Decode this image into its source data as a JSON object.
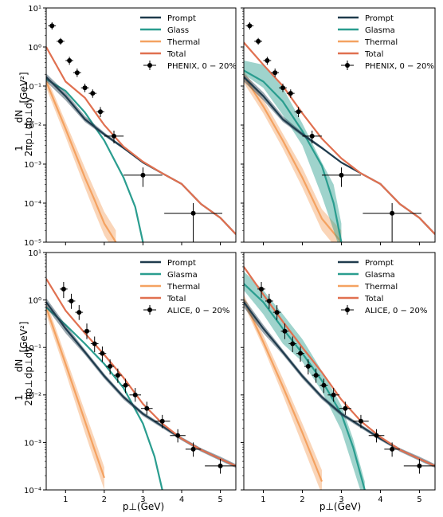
{
  "axes": {
    "ylabel_frac_num": "1",
    "ylabel_frac_den": "2πp⊥",
    "ylabel_deriv_num": "dN",
    "ylabel_deriv_den": "dp⊥dy",
    "ylabel_unit": "[GeV²]",
    "xlabel": "p⊥(GeV)"
  },
  "colors": {
    "prompt": "#1f3b4d",
    "glasma": "#2a9d8f",
    "thermal": "#f4a261",
    "total": "#e07050",
    "data": "#000000"
  },
  "chart_data": [
    {
      "type": "line",
      "panel": "top-left",
      "yscale": "log",
      "xlim": [
        0.5,
        5.4
      ],
      "ylim": [
        1e-05,
        10
      ],
      "xticks": [
        1,
        2,
        3,
        4,
        5
      ],
      "yticks": [
        "10⁻⁵",
        "10⁻⁴",
        "10⁻³",
        "10⁻²",
        "10⁻¹",
        "10⁰",
        "10¹"
      ],
      "show_x_ticklabels": false,
      "show_y_ticklabels": true,
      "legend_loc": "top-right",
      "series": [
        {
          "name": "Prompt",
          "key": "prompt",
          "style": "band",
          "x": [
            0.5,
            1.0,
            1.5,
            2.0,
            2.5,
            3.0,
            3.5,
            4.0,
            4.5,
            5.0,
            5.4
          ],
          "y": [
            0.17,
            0.055,
            0.014,
            0.0058,
            0.0026,
            0.0011,
            0.00058,
            0.00031,
            9.5e-05,
            4.2e-05,
            1.6e-05
          ],
          "lo": [
            0.13,
            0.043,
            0.012,
            0.0052,
            0.0024,
            0.0011,
            0.00058,
            0.00031,
            9.5e-05,
            4.2e-05,
            1.6e-05
          ],
          "hi": [
            0.21,
            0.069,
            0.017,
            0.0065,
            0.0028,
            0.0011,
            0.00058,
            0.00031,
            9.5e-05,
            4.2e-05,
            1.6e-05
          ]
        },
        {
          "name": "Glass",
          "key": "glasma",
          "style": "line",
          "x": [
            0.5,
            1.0,
            1.5,
            2.0,
            2.5,
            2.8,
            3.0
          ],
          "y": [
            0.15,
            0.075,
            0.021,
            0.004,
            0.00045,
            8e-05,
            1e-05
          ]
        },
        {
          "name": "Thermal",
          "key": "thermal",
          "style": "band",
          "x": [
            0.5,
            1.0,
            1.5,
            1.75,
            2.0,
            2.3
          ],
          "y": [
            0.13,
            0.008,
            0.00045,
            0.00012,
            3e-05,
            1e-05
          ],
          "lo": [
            0.09,
            0.005,
            0.00025,
            6e-05,
            1.5e-05,
            5e-06
          ],
          "hi": [
            0.18,
            0.012,
            0.0008,
            0.00022,
            6e-05,
            2e-05
          ]
        },
        {
          "name": "Total",
          "key": "total",
          "style": "line",
          "x": [
            0.5,
            1.0,
            1.5,
            2.0,
            2.5,
            3.0,
            3.5,
            4.0,
            4.5,
            5.0,
            5.4
          ],
          "y": [
            1.0,
            0.13,
            0.05,
            0.01,
            0.0028,
            0.00115,
            0.00058,
            0.00031,
            9.5e-05,
            4.2e-05,
            1.6e-05
          ]
        },
        {
          "name": "PHENIX, 0 − 20%",
          "key": "data",
          "style": "errorbar",
          "x": [
            0.65,
            0.87,
            1.1,
            1.3,
            1.5,
            1.7,
            1.9,
            2.25,
            3.0,
            4.3
          ],
          "y": [
            3.5,
            1.4,
            0.45,
            0.22,
            0.09,
            0.065,
            0.022,
            0.0052,
            0.00052,
            5.5e-05
          ],
          "xerr": [
            0.1,
            0.1,
            0.1,
            0.1,
            0.1,
            0.1,
            0.1,
            0.25,
            0.5,
            0.75
          ],
          "ylo": [
            2.8,
            1.15,
            0.35,
            0.17,
            0.07,
            0.05,
            0.016,
            0.0034,
            0.00026,
            1e-05
          ],
          "yhi": [
            4.3,
            1.7,
            0.56,
            0.28,
            0.115,
            0.082,
            0.029,
            0.0072,
            0.00082,
            0.0001
          ]
        }
      ]
    },
    {
      "type": "line",
      "panel": "top-right",
      "yscale": "log",
      "xlim": [
        0.5,
        5.4
      ],
      "ylim": [
        1e-05,
        10
      ],
      "xticks": [
        1,
        2,
        3,
        4,
        5
      ],
      "yticks": [
        "10⁻⁵",
        "10⁻⁴",
        "10⁻³",
        "10⁻²",
        "10⁻¹",
        "10⁰",
        "10¹"
      ],
      "show_x_ticklabels": false,
      "show_y_ticklabels": false,
      "legend_loc": "top-right",
      "series": [
        {
          "name": "Prompt",
          "key": "prompt",
          "style": "band",
          "x": [
            0.5,
            1.0,
            1.5,
            2.0,
            2.5,
            3.0,
            3.5,
            4.0,
            4.5,
            5.0,
            5.4
          ],
          "y": [
            0.17,
            0.055,
            0.014,
            0.0058,
            0.0026,
            0.0011,
            0.00058,
            0.00031,
            9.5e-05,
            4.2e-05,
            1.6e-05
          ],
          "lo": [
            0.13,
            0.043,
            0.012,
            0.0052,
            0.0024,
            0.0011,
            0.00058,
            0.00031,
            9.5e-05,
            4.2e-05,
            1.6e-05
          ],
          "hi": [
            0.21,
            0.069,
            0.017,
            0.0065,
            0.0028,
            0.0011,
            0.00058,
            0.00031,
            9.5e-05,
            4.2e-05,
            1.6e-05
          ]
        },
        {
          "name": "Glasma",
          "key": "glasma",
          "style": "band",
          "x": [
            0.5,
            1.0,
            1.5,
            2.0,
            2.5,
            2.8,
            3.0
          ],
          "y": [
            0.25,
            0.13,
            0.04,
            0.007,
            0.0009,
            0.0001,
            1e-05
          ],
          "lo": [
            0.2,
            0.09,
            0.018,
            0.003,
            0.00015,
            2e-05,
            5e-06
          ],
          "hi": [
            0.45,
            0.35,
            0.09,
            0.011,
            0.0011,
            0.0003,
            3e-05
          ]
        },
        {
          "name": "Thermal",
          "key": "thermal",
          "style": "band",
          "x": [
            0.5,
            1.0,
            1.5,
            2.0,
            2.5,
            3.0
          ],
          "y": [
            0.18,
            0.03,
            0.004,
            0.00045,
            4e-05,
            1e-05
          ],
          "lo": [
            0.12,
            0.02,
            0.0025,
            0.00025,
            2e-05,
            5e-06
          ],
          "hi": [
            0.25,
            0.045,
            0.006,
            0.0008,
            7e-05,
            2e-05
          ]
        },
        {
          "name": "Total",
          "key": "total",
          "style": "line",
          "x": [
            0.5,
            1.0,
            1.5,
            2.0,
            2.5,
            3.0,
            3.5,
            4.0,
            4.5,
            5.0,
            5.4
          ],
          "y": [
            1.3,
            0.35,
            0.1,
            0.02,
            0.0045,
            0.0014,
            0.00058,
            0.00031,
            9.5e-05,
            4.2e-05,
            1.6e-05
          ]
        },
        {
          "name": "PHENIX, 0 − 20%",
          "key": "data",
          "style": "errorbar",
          "x": [
            0.65,
            0.87,
            1.1,
            1.3,
            1.5,
            1.7,
            1.9,
            2.25,
            3.0,
            4.3
          ],
          "y": [
            3.5,
            1.4,
            0.45,
            0.22,
            0.09,
            0.065,
            0.022,
            0.0052,
            0.00052,
            5.5e-05
          ],
          "xerr": [
            0.1,
            0.1,
            0.1,
            0.1,
            0.1,
            0.1,
            0.1,
            0.25,
            0.5,
            0.75
          ],
          "ylo": [
            2.8,
            1.15,
            0.35,
            0.17,
            0.07,
            0.05,
            0.016,
            0.0034,
            0.00026,
            1e-05
          ],
          "yhi": [
            4.3,
            1.7,
            0.56,
            0.28,
            0.115,
            0.082,
            0.029,
            0.0072,
            0.00082,
            0.0001
          ]
        }
      ]
    },
    {
      "type": "line",
      "panel": "bottom-left",
      "yscale": "log",
      "xlim": [
        0.5,
        5.4
      ],
      "ylim": [
        0.0001,
        10
      ],
      "xticks": [
        1,
        2,
        3,
        4,
        5
      ],
      "yticks": [
        "10⁻⁴",
        "10⁻³",
        "10⁻²",
        "10⁻¹",
        "10⁰",
        "10¹"
      ],
      "show_x_ticklabels": true,
      "show_y_ticklabels": true,
      "legend_loc": "top-right",
      "series": [
        {
          "name": "Prompt",
          "key": "prompt",
          "style": "band",
          "x": [
            0.5,
            1.0,
            1.5,
            2.0,
            2.5,
            3.0,
            3.5,
            4.0,
            4.5,
            5.0,
            5.4
          ],
          "y": [
            0.9,
            0.25,
            0.08,
            0.025,
            0.009,
            0.004,
            0.0022,
            0.0012,
            0.0007,
            0.00045,
            0.00032
          ],
          "lo": [
            0.7,
            0.2,
            0.07,
            0.022,
            0.008,
            0.0036,
            0.002,
            0.0011,
            0.00064,
            0.00041,
            0.00029
          ],
          "hi": [
            1.1,
            0.3,
            0.09,
            0.028,
            0.01,
            0.0044,
            0.0024,
            0.0013,
            0.00076,
            0.0005,
            0.00035
          ]
        },
        {
          "name": "Glasma",
          "key": "glasma",
          "style": "line",
          "x": [
            0.5,
            1.0,
            1.5,
            2.0,
            2.5,
            3.0,
            3.3,
            3.5
          ],
          "y": [
            0.7,
            0.3,
            0.12,
            0.045,
            0.014,
            0.0025,
            0.0005,
            0.0001
          ]
        },
        {
          "name": "Thermal",
          "key": "thermal",
          "style": "band",
          "x": [
            0.5,
            1.0,
            1.5,
            1.75,
            2.0
          ],
          "y": [
            0.7,
            0.045,
            0.0028,
            0.0007,
            0.00018
          ],
          "lo": [
            0.5,
            0.03,
            0.0016,
            0.0004,
            0.0001
          ],
          "hi": [
            0.95,
            0.065,
            0.0045,
            0.0012,
            0.0003
          ]
        },
        {
          "name": "Total",
          "key": "total",
          "style": "line",
          "x": [
            0.5,
            1.0,
            1.5,
            2.0,
            2.5,
            3.0,
            3.5,
            4.0,
            4.5,
            5.0,
            5.4
          ],
          "y": [
            2.8,
            0.6,
            0.2,
            0.07,
            0.023,
            0.0065,
            0.0025,
            0.0012,
            0.0007,
            0.00045,
            0.00032
          ]
        },
        {
          "name": "ALICE, 0 − 20%",
          "key": "data",
          "style": "errorbar",
          "x": [
            0.95,
            1.15,
            1.35,
            1.55,
            1.75,
            1.95,
            2.15,
            2.35,
            2.55,
            2.8,
            3.1,
            3.5,
            3.9,
            4.3,
            5.0
          ],
          "y": [
            1.7,
            0.95,
            0.55,
            0.22,
            0.12,
            0.075,
            0.04,
            0.026,
            0.016,
            0.01,
            0.0052,
            0.0028,
            0.0014,
            0.00072,
            0.00032
          ],
          "xerr": [
            0.1,
            0.1,
            0.1,
            0.1,
            0.1,
            0.1,
            0.1,
            0.1,
            0.1,
            0.15,
            0.15,
            0.2,
            0.2,
            0.2,
            0.4
          ],
          "ylo": [
            1.1,
            0.65,
            0.38,
            0.15,
            0.08,
            0.05,
            0.027,
            0.018,
            0.011,
            0.0072,
            0.0038,
            0.002,
            0.001,
            0.0005,
            0.00022
          ],
          "yhi": [
            2.4,
            1.35,
            0.78,
            0.32,
            0.17,
            0.105,
            0.056,
            0.036,
            0.022,
            0.014,
            0.0072,
            0.0038,
            0.0019,
            0.001,
            0.00045
          ]
        }
      ]
    },
    {
      "type": "line",
      "panel": "bottom-right",
      "yscale": "log",
      "xlim": [
        0.5,
        5.4
      ],
      "ylim": [
        0.0001,
        10
      ],
      "xticks": [
        1,
        2,
        3,
        4,
        5
      ],
      "yticks": [
        "10⁻⁴",
        "10⁻³",
        "10⁻²",
        "10⁻¹",
        "10⁰",
        "10¹"
      ],
      "show_x_ticklabels": true,
      "show_y_ticklabels": false,
      "legend_loc": "top-right",
      "series": [
        {
          "name": "Prompt",
          "key": "prompt",
          "style": "band",
          "x": [
            0.5,
            1.0,
            1.5,
            2.0,
            2.5,
            3.0,
            3.5,
            4.0,
            4.5,
            5.0,
            5.4
          ],
          "y": [
            0.9,
            0.25,
            0.08,
            0.025,
            0.009,
            0.004,
            0.0022,
            0.0012,
            0.0007,
            0.00045,
            0.00032
          ],
          "lo": [
            0.7,
            0.2,
            0.07,
            0.022,
            0.008,
            0.0036,
            0.002,
            0.0011,
            0.00064,
            0.00041,
            0.00029
          ],
          "hi": [
            1.1,
            0.3,
            0.09,
            0.028,
            0.01,
            0.0044,
            0.0024,
            0.0013,
            0.00076,
            0.0005,
            0.00035
          ]
        },
        {
          "name": "Glasma",
          "key": "glasma",
          "style": "band",
          "x": [
            0.5,
            1.0,
            1.5,
            2.0,
            2.5,
            3.0,
            3.3,
            3.6
          ],
          "y": [
            2.2,
            0.9,
            0.25,
            0.075,
            0.02,
            0.004,
            0.0008,
            0.0001
          ],
          "lo": [
            1.6,
            0.5,
            0.12,
            0.05,
            0.012,
            0.0018,
            0.0003,
            5e-05
          ],
          "hi": [
            4.0,
            1.6,
            0.5,
            0.15,
            0.032,
            0.006,
            0.0012,
            0.00015
          ]
        },
        {
          "name": "Thermal",
          "key": "thermal",
          "style": "band",
          "x": [
            0.5,
            1.0,
            1.5,
            2.0,
            2.5
          ],
          "y": [
            1.0,
            0.13,
            0.015,
            0.0016,
            0.00015
          ],
          "lo": [
            0.8,
            0.1,
            0.01,
            0.0009,
            8e-05
          ],
          "hi": [
            1.3,
            0.18,
            0.022,
            0.0025,
            0.00026
          ]
        },
        {
          "name": "Total",
          "key": "total",
          "style": "line",
          "x": [
            0.5,
            1.0,
            1.5,
            2.0,
            2.5,
            3.0,
            3.5,
            4.0,
            4.5,
            5.0,
            5.4
          ],
          "y": [
            5.0,
            1.3,
            0.35,
            0.1,
            0.03,
            0.008,
            0.0028,
            0.0013,
            0.0007,
            0.00045,
            0.00032
          ]
        },
        {
          "name": "ALICE, 0 − 20%",
          "key": "data",
          "style": "errorbar",
          "x": [
            0.95,
            1.15,
            1.35,
            1.55,
            1.75,
            1.95,
            2.15,
            2.35,
            2.55,
            2.8,
            3.1,
            3.5,
            3.9,
            4.3,
            5.0
          ],
          "y": [
            1.7,
            0.95,
            0.55,
            0.22,
            0.12,
            0.075,
            0.04,
            0.026,
            0.016,
            0.01,
            0.0052,
            0.0028,
            0.0014,
            0.00072,
            0.00032
          ],
          "xerr": [
            0.1,
            0.1,
            0.1,
            0.1,
            0.1,
            0.1,
            0.1,
            0.1,
            0.1,
            0.15,
            0.15,
            0.2,
            0.2,
            0.2,
            0.4
          ],
          "ylo": [
            1.1,
            0.65,
            0.38,
            0.15,
            0.08,
            0.05,
            0.027,
            0.018,
            0.011,
            0.0072,
            0.0038,
            0.002,
            0.001,
            0.0005,
            0.00022
          ],
          "yhi": [
            2.4,
            1.35,
            0.78,
            0.32,
            0.17,
            0.105,
            0.056,
            0.036,
            0.022,
            0.014,
            0.0072,
            0.0038,
            0.0019,
            0.001,
            0.00045
          ]
        }
      ]
    }
  ]
}
